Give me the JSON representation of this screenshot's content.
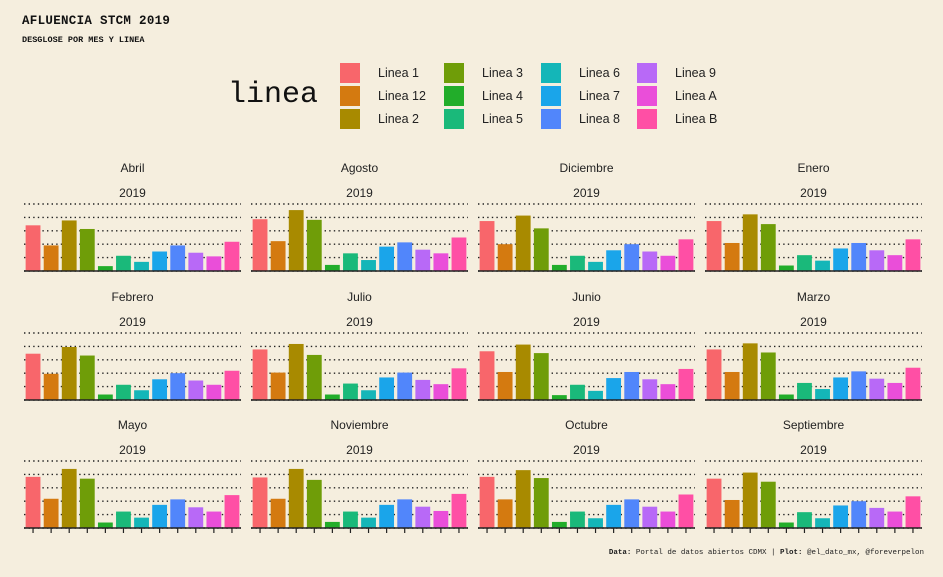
{
  "title": "AFLUENCIA STCM 2019",
  "subtitle": "DESGLOSE POR MES Y LINEA",
  "legend": {
    "title": "linea",
    "items": [
      {
        "label": "Linea 1",
        "color": "#f8666b"
      },
      {
        "label": "Linea 12",
        "color": "#d47a10"
      },
      {
        "label": "Linea 2",
        "color": "#a88a00"
      },
      {
        "label": "Linea 3",
        "color": "#6f9d08"
      },
      {
        "label": "Linea 4",
        "color": "#22ad2a"
      },
      {
        "label": "Linea 5",
        "color": "#1ab97a"
      },
      {
        "label": "Linea 6",
        "color": "#14b6b8"
      },
      {
        "label": "Linea 7",
        "color": "#1aa5ea"
      },
      {
        "label": "Linea 8",
        "color": "#5186fb"
      },
      {
        "label": "Linea 9",
        "color": "#b869f7"
      },
      {
        "label": "Linea A",
        "color": "#ea4ed9"
      },
      {
        "label": "Linea B",
        "color": "#ff4fa5"
      }
    ]
  },
  "caption": {
    "data_label": "Data:",
    "data_text": " Portal de datos abiertos CDMX | ",
    "plot_label": "Plot:",
    "plot_text": " @el_dato_mx, @foreverpelon"
  },
  "chart_data": {
    "type": "bar",
    "categories": [
      "Linea 1",
      "Linea 12",
      "Linea 2",
      "Linea 3",
      "Linea 4",
      "Linea 5",
      "Linea 6",
      "Linea 7",
      "Linea 8",
      "Linea 9",
      "Linea A",
      "Linea B"
    ],
    "ylim": [
      0,
      1.1
    ],
    "grid": true,
    "legend_position": "top",
    "panels": [
      {
        "month": "Abril",
        "year": "2019",
        "values": [
          0.75,
          0.42,
          0.83,
          0.69,
          0.08,
          0.25,
          0.15,
          0.32,
          0.42,
          0.3,
          0.24,
          0.48
        ]
      },
      {
        "month": "Agosto",
        "year": "2019",
        "values": [
          0.85,
          0.49,
          1.0,
          0.84,
          0.1,
          0.29,
          0.18,
          0.4,
          0.47,
          0.35,
          0.29,
          0.55
        ]
      },
      {
        "month": "Diciembre",
        "year": "2019",
        "values": [
          0.82,
          0.44,
          0.91,
          0.7,
          0.1,
          0.25,
          0.15,
          0.34,
          0.44,
          0.32,
          0.25,
          0.52
        ]
      },
      {
        "month": "Enero",
        "year": "2019",
        "values": [
          0.82,
          0.46,
          0.93,
          0.77,
          0.09,
          0.26,
          0.17,
          0.37,
          0.46,
          0.34,
          0.26,
          0.52
        ]
      },
      {
        "month": "Febrero",
        "year": "2019",
        "values": [
          0.76,
          0.43,
          0.87,
          0.73,
          0.09,
          0.25,
          0.16,
          0.34,
          0.44,
          0.32,
          0.25,
          0.48
        ]
      },
      {
        "month": "Julio",
        "year": "2019",
        "values": [
          0.83,
          0.45,
          0.92,
          0.74,
          0.09,
          0.27,
          0.16,
          0.37,
          0.45,
          0.33,
          0.26,
          0.52
        ]
      },
      {
        "month": "Junio",
        "year": "2019",
        "values": [
          0.8,
          0.46,
          0.91,
          0.77,
          0.08,
          0.25,
          0.15,
          0.36,
          0.46,
          0.34,
          0.26,
          0.51
        ]
      },
      {
        "month": "Marzo",
        "year": "2019",
        "values": [
          0.83,
          0.46,
          0.93,
          0.78,
          0.09,
          0.28,
          0.18,
          0.37,
          0.47,
          0.35,
          0.28,
          0.53
        ]
      },
      {
        "month": "Mayo",
        "year": "2019",
        "values": [
          0.84,
          0.48,
          0.97,
          0.81,
          0.09,
          0.27,
          0.17,
          0.38,
          0.47,
          0.34,
          0.27,
          0.54
        ]
      },
      {
        "month": "Noviembre",
        "year": "2019",
        "values": [
          0.83,
          0.48,
          0.97,
          0.79,
          0.1,
          0.27,
          0.17,
          0.38,
          0.47,
          0.35,
          0.28,
          0.56
        ]
      },
      {
        "month": "Octubre",
        "year": "2019",
        "values": [
          0.84,
          0.47,
          0.95,
          0.82,
          0.1,
          0.27,
          0.16,
          0.38,
          0.47,
          0.35,
          0.27,
          0.55
        ]
      },
      {
        "month": "Septiembre",
        "year": "2019",
        "values": [
          0.81,
          0.46,
          0.91,
          0.76,
          0.09,
          0.26,
          0.16,
          0.37,
          0.44,
          0.33,
          0.27,
          0.52
        ]
      }
    ]
  }
}
